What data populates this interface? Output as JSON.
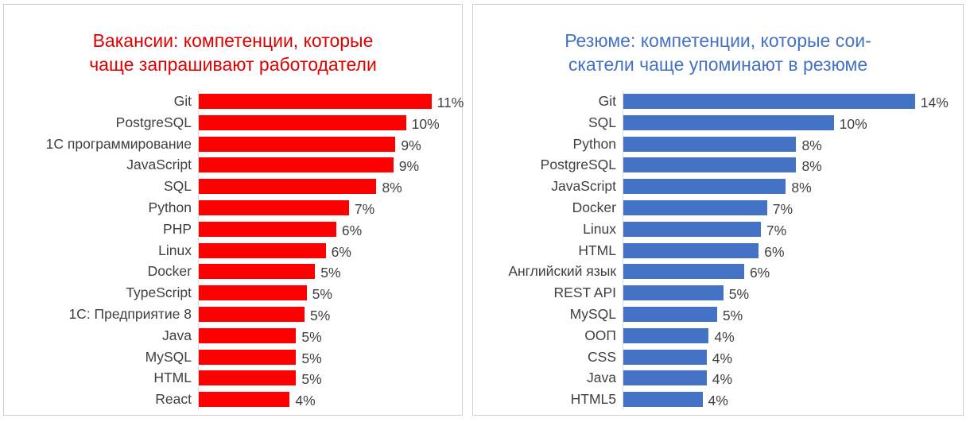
{
  "chart_data": [
    {
      "type": "bar",
      "orientation": "horizontal",
      "title": "Вакансии: компетенции, которые чаще запрашивают работодатели",
      "title_lines": [
        "Вакансии: компетенции, которые",
        "чаще запрашивают работодатели"
      ],
      "color": "#ff0000",
      "title_color": "#e00000",
      "categories": [
        "Git",
        "PostgreSQL",
        "1C программирование",
        "JavaScript",
        "SQL",
        "Python",
        "PHP",
        "Linux",
        "Docker",
        "TypeScript",
        "1С: Предприятие 8",
        "Java",
        "MySQL",
        "HTML",
        "React"
      ],
      "values": [
        11.0,
        9.8,
        9.3,
        9.2,
        8.4,
        7.1,
        6.5,
        6.0,
        5.5,
        5.1,
        5.0,
        4.6,
        4.6,
        4.6,
        4.3
      ],
      "data_labels": [
        "11%",
        "10%",
        "9%",
        "9%",
        "8%",
        "7%",
        "6%",
        "6%",
        "5%",
        "5%",
        "5%",
        "5%",
        "5%",
        "5%",
        "4%"
      ],
      "xlim": [
        0,
        12
      ],
      "grid": false
    },
    {
      "type": "bar",
      "orientation": "horizontal",
      "title": "Резюме: компетенции, которые соискатели чаще упоминают в резюме",
      "title_lines": [
        "Резюме: компетенции, которые сои-",
        "скатели чаще упоминают в резюме"
      ],
      "color": "#4472c4",
      "title_color": "#4472c4",
      "categories": [
        "Git",
        "SQL",
        "Python",
        "PostgreSQL",
        "JavaScript",
        "Docker",
        "Linux",
        "HTML",
        "Английский язык",
        "REST API",
        "MySQL",
        "ООП",
        "CSS",
        "Java",
        "HTML5"
      ],
      "values": [
        14.0,
        10.1,
        8.3,
        8.3,
        7.8,
        6.9,
        6.6,
        6.5,
        5.8,
        4.8,
        4.5,
        4.1,
        4.0,
        4.0,
        3.8
      ],
      "data_labels": [
        "14%",
        "10%",
        "8%",
        "8%",
        "8%",
        "7%",
        "7%",
        "6%",
        "6%",
        "5%",
        "5%",
        "4%",
        "4%",
        "4%",
        "4%"
      ],
      "xlim": [
        0,
        15
      ],
      "grid": false
    }
  ]
}
